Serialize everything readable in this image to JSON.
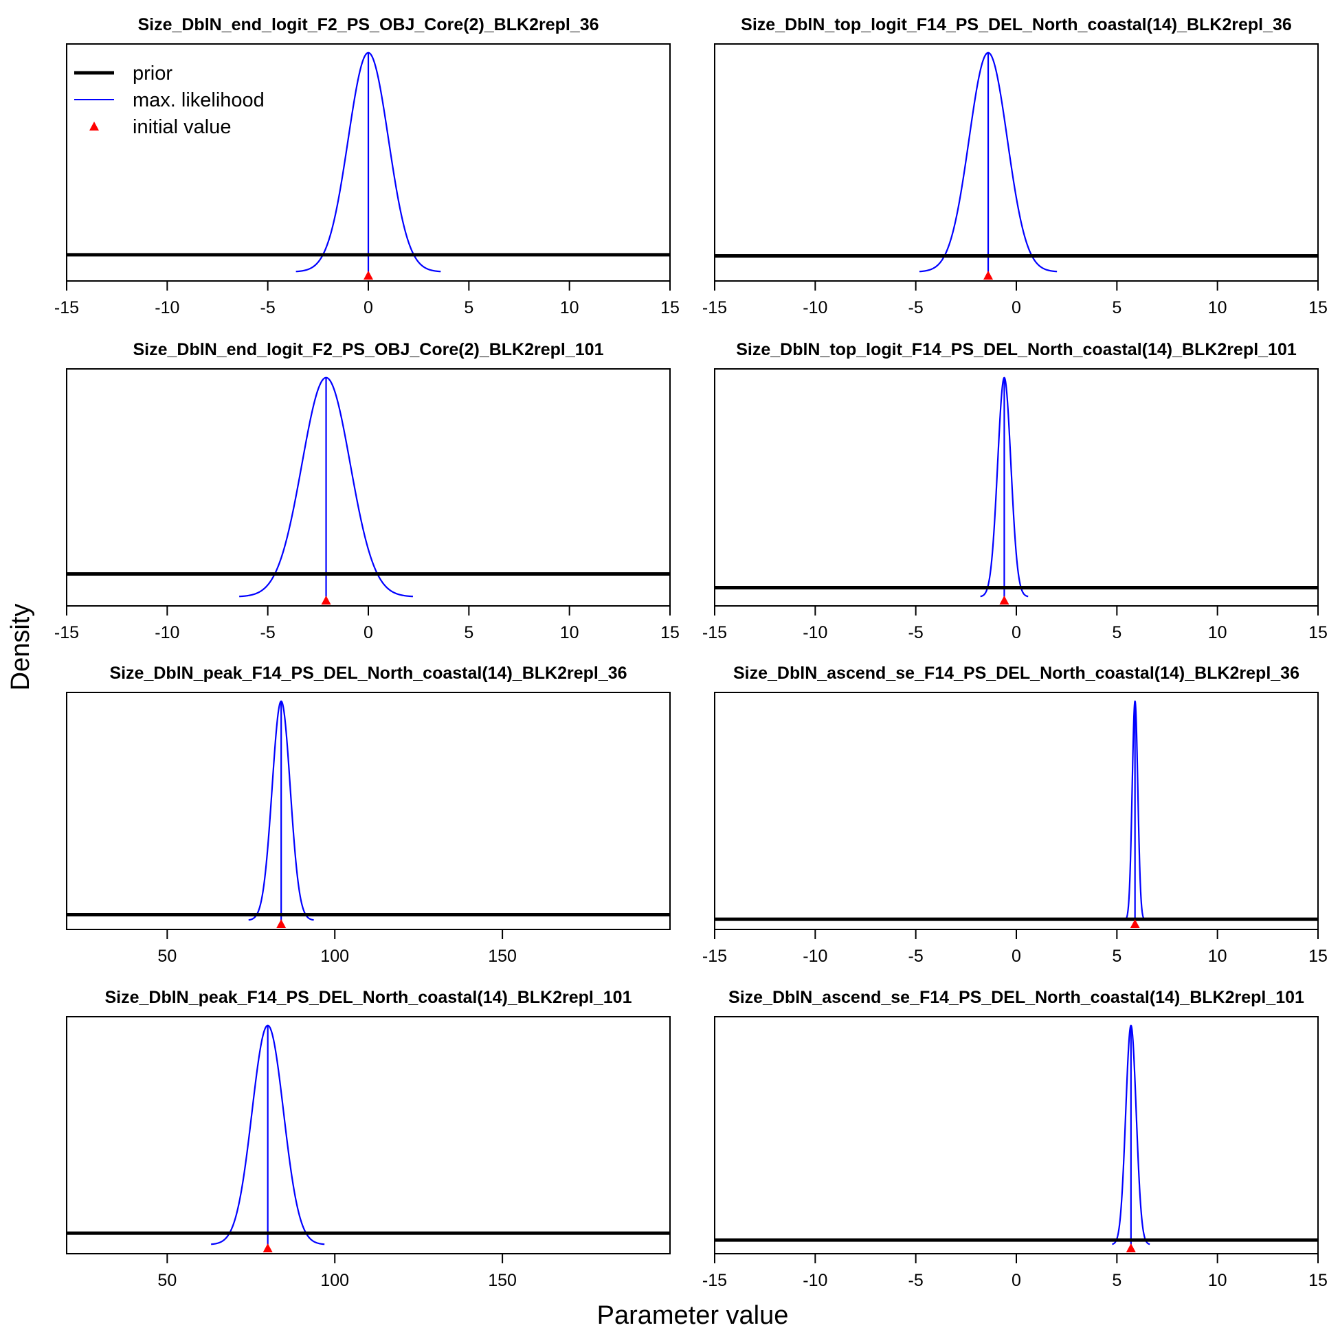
{
  "figure": {
    "ylabel": "Density",
    "xlabel": "Parameter value",
    "colors": {
      "prior": "#000000",
      "likelihood": "#0000ff",
      "initial": "#ff0000"
    }
  },
  "legend": {
    "placement": "top-left of first panel",
    "items": [
      {
        "label": "prior",
        "style": "thick-line",
        "color": "#000000"
      },
      {
        "label": "max. likelihood",
        "style": "thin-line",
        "color": "#0000ff"
      },
      {
        "label": "initial value",
        "style": "triangle",
        "color": "#ff0000"
      }
    ]
  },
  "chart_data": [
    {
      "type": "line",
      "title": "Size_DblN_end_logit_F2_PS_OBJ_Core(2)_BLK2repl_36",
      "xlim": [
        -15,
        15
      ],
      "xticks": [
        -15,
        -10,
        -5,
        0,
        5,
        10,
        15
      ],
      "prior_level": 0.075,
      "ml_mean": 0,
      "ml_sd": 1.0,
      "initial_value": 0
    },
    {
      "type": "line",
      "title": "Size_DblN_top_logit_F14_PS_DEL_North_coastal(14)_BLK2repl_36",
      "xlim": [
        -15,
        15
      ],
      "xticks": [
        -15,
        -10,
        -5,
        0,
        5,
        10,
        15
      ],
      "prior_level": 0.07,
      "ml_mean": -1.4,
      "ml_sd": 0.95,
      "initial_value": -1.4
    },
    {
      "type": "line",
      "title": "Size_DblN_end_logit_F2_PS_OBJ_Core(2)_BLK2repl_101",
      "xlim": [
        -15,
        15
      ],
      "xticks": [
        -15,
        -10,
        -5,
        0,
        5,
        10,
        15
      ],
      "prior_level": 0.1,
      "ml_mean": -2.1,
      "ml_sd": 1.2,
      "initial_value": -2.1
    },
    {
      "type": "line",
      "title": "Size_DblN_top_logit_F14_PS_DEL_North_coastal(14)_BLK2repl_101",
      "xlim": [
        -15,
        15
      ],
      "xticks": [
        -15,
        -10,
        -5,
        0,
        5,
        10,
        15
      ],
      "prior_level": 0.04,
      "ml_mean": -0.6,
      "ml_sd": 0.33,
      "initial_value": -0.6
    },
    {
      "type": "line",
      "title": "Size_DblN_peak_F14_PS_DEL_North_coastal(14)_BLK2repl_36",
      "xlim": [
        20,
        200
      ],
      "xticks": [
        50,
        100,
        150
      ],
      "prior_level": 0.025,
      "ml_mean": 84,
      "ml_sd": 2.7,
      "initial_value": 84
    },
    {
      "type": "line",
      "title": "Size_DblN_ascend_se_F14_PS_DEL_North_coastal(14)_BLK2repl_36",
      "xlim": [
        -15,
        15
      ],
      "xticks": [
        -15,
        -10,
        -5,
        0,
        5,
        10,
        15
      ],
      "prior_level": 0.005,
      "ml_mean": 5.9,
      "ml_sd": 0.14,
      "initial_value": 5.9
    },
    {
      "type": "line",
      "title": "Size_DblN_peak_F14_PS_DEL_North_coastal(14)_BLK2repl_101",
      "xlim": [
        20,
        200
      ],
      "xticks": [
        50,
        100,
        150
      ],
      "prior_level": 0.05,
      "ml_mean": 80,
      "ml_sd": 4.7,
      "initial_value": 80
    },
    {
      "type": "line",
      "title": "Size_DblN_ascend_se_F14_PS_DEL_North_coastal(14)_BLK2repl_101",
      "xlim": [
        -15,
        15
      ],
      "xticks": [
        -15,
        -10,
        -5,
        0,
        5,
        10,
        15
      ],
      "prior_level": 0.02,
      "ml_mean": 5.7,
      "ml_sd": 0.26,
      "initial_value": 5.7
    }
  ]
}
